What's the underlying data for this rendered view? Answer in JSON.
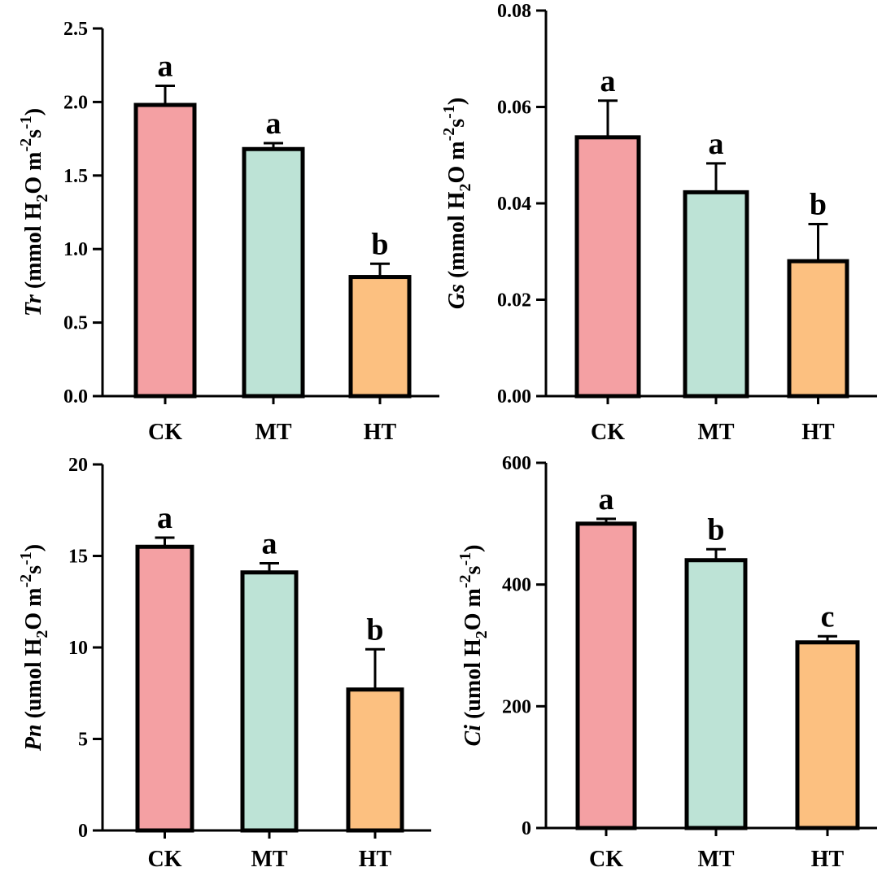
{
  "chart_data": [
    {
      "type": "bar",
      "panel": "Tr",
      "ylabel": {
        "var": "Tr",
        "open": " (mmol H",
        "sub": "2",
        "mid": "O m",
        "sup1": "-2",
        "s": "s",
        "sup2": "-1",
        "close": ")"
      },
      "categories": [
        "CK",
        "MT",
        "HT"
      ],
      "values": [
        1.98,
        1.68,
        0.81
      ],
      "errors": [
        0.13,
        0.04,
        0.09
      ],
      "letters": [
        "a",
        "a",
        "b"
      ],
      "ylim": [
        0,
        2.5
      ],
      "yticks": [
        0,
        0.5,
        1.0,
        1.5,
        2.0,
        2.5
      ],
      "ytick_labels": [
        "0.0",
        "0.5",
        "1.0",
        "1.5",
        "2.0",
        "2.5"
      ]
    },
    {
      "type": "bar",
      "panel": "Gs",
      "ylabel": {
        "var": "Gs",
        "open": " (mmol H",
        "sub": "2",
        "mid": "O m",
        "sup1": "-2",
        "s": "s",
        "sup2": "-1",
        "close": ")"
      },
      "categories": [
        "CK",
        "MT",
        "HT"
      ],
      "values": [
        0.0537,
        0.0423,
        0.028
      ],
      "errors": [
        0.0076,
        0.006,
        0.0077
      ],
      "letters": [
        "a",
        "a",
        "b"
      ],
      "ylim": [
        0,
        0.08
      ],
      "yticks": [
        0,
        0.02,
        0.04,
        0.06,
        0.08
      ],
      "ytick_labels": [
        "0.00",
        "0.02",
        "0.04",
        "0.06",
        "0.08"
      ]
    },
    {
      "type": "bar",
      "panel": "Pn",
      "ylabel": {
        "var": "Pn",
        "open": " (umol H",
        "sub": "2",
        "mid": "O m",
        "sup1": "-2",
        "s": "s",
        "sup2": "-1",
        "close": ")"
      },
      "categories": [
        "CK",
        "MT",
        "HT"
      ],
      "values": [
        15.5,
        14.1,
        7.7
      ],
      "errors": [
        0.5,
        0.5,
        2.2
      ],
      "letters": [
        "a",
        "a",
        "b"
      ],
      "ylim": [
        0,
        20
      ],
      "yticks": [
        0,
        5,
        10,
        15,
        20
      ],
      "ytick_labels": [
        "0",
        "5",
        "10",
        "15",
        "20"
      ]
    },
    {
      "type": "bar",
      "panel": "Ci",
      "ylabel": {
        "var": "Ci",
        "open": " (umol H",
        "sub": "2",
        "mid": "O m",
        "sup1": "-2",
        "s": "s",
        "sup2": "-1",
        "close": ")"
      },
      "categories": [
        "CK",
        "MT",
        "HT"
      ],
      "values": [
        500,
        440,
        305
      ],
      "errors": [
        8,
        18,
        10
      ],
      "letters": [
        "a",
        "b",
        "c"
      ],
      "ylim": [
        0,
        600
      ],
      "yticks": [
        0,
        200,
        400,
        600
      ],
      "ytick_labels": [
        "0",
        "200",
        "400",
        "600"
      ]
    }
  ],
  "colors": {
    "CK": "#f4a0a3",
    "MT": "#bde3d6",
    "HT": "#fcc080",
    "outline": "#000000"
  }
}
